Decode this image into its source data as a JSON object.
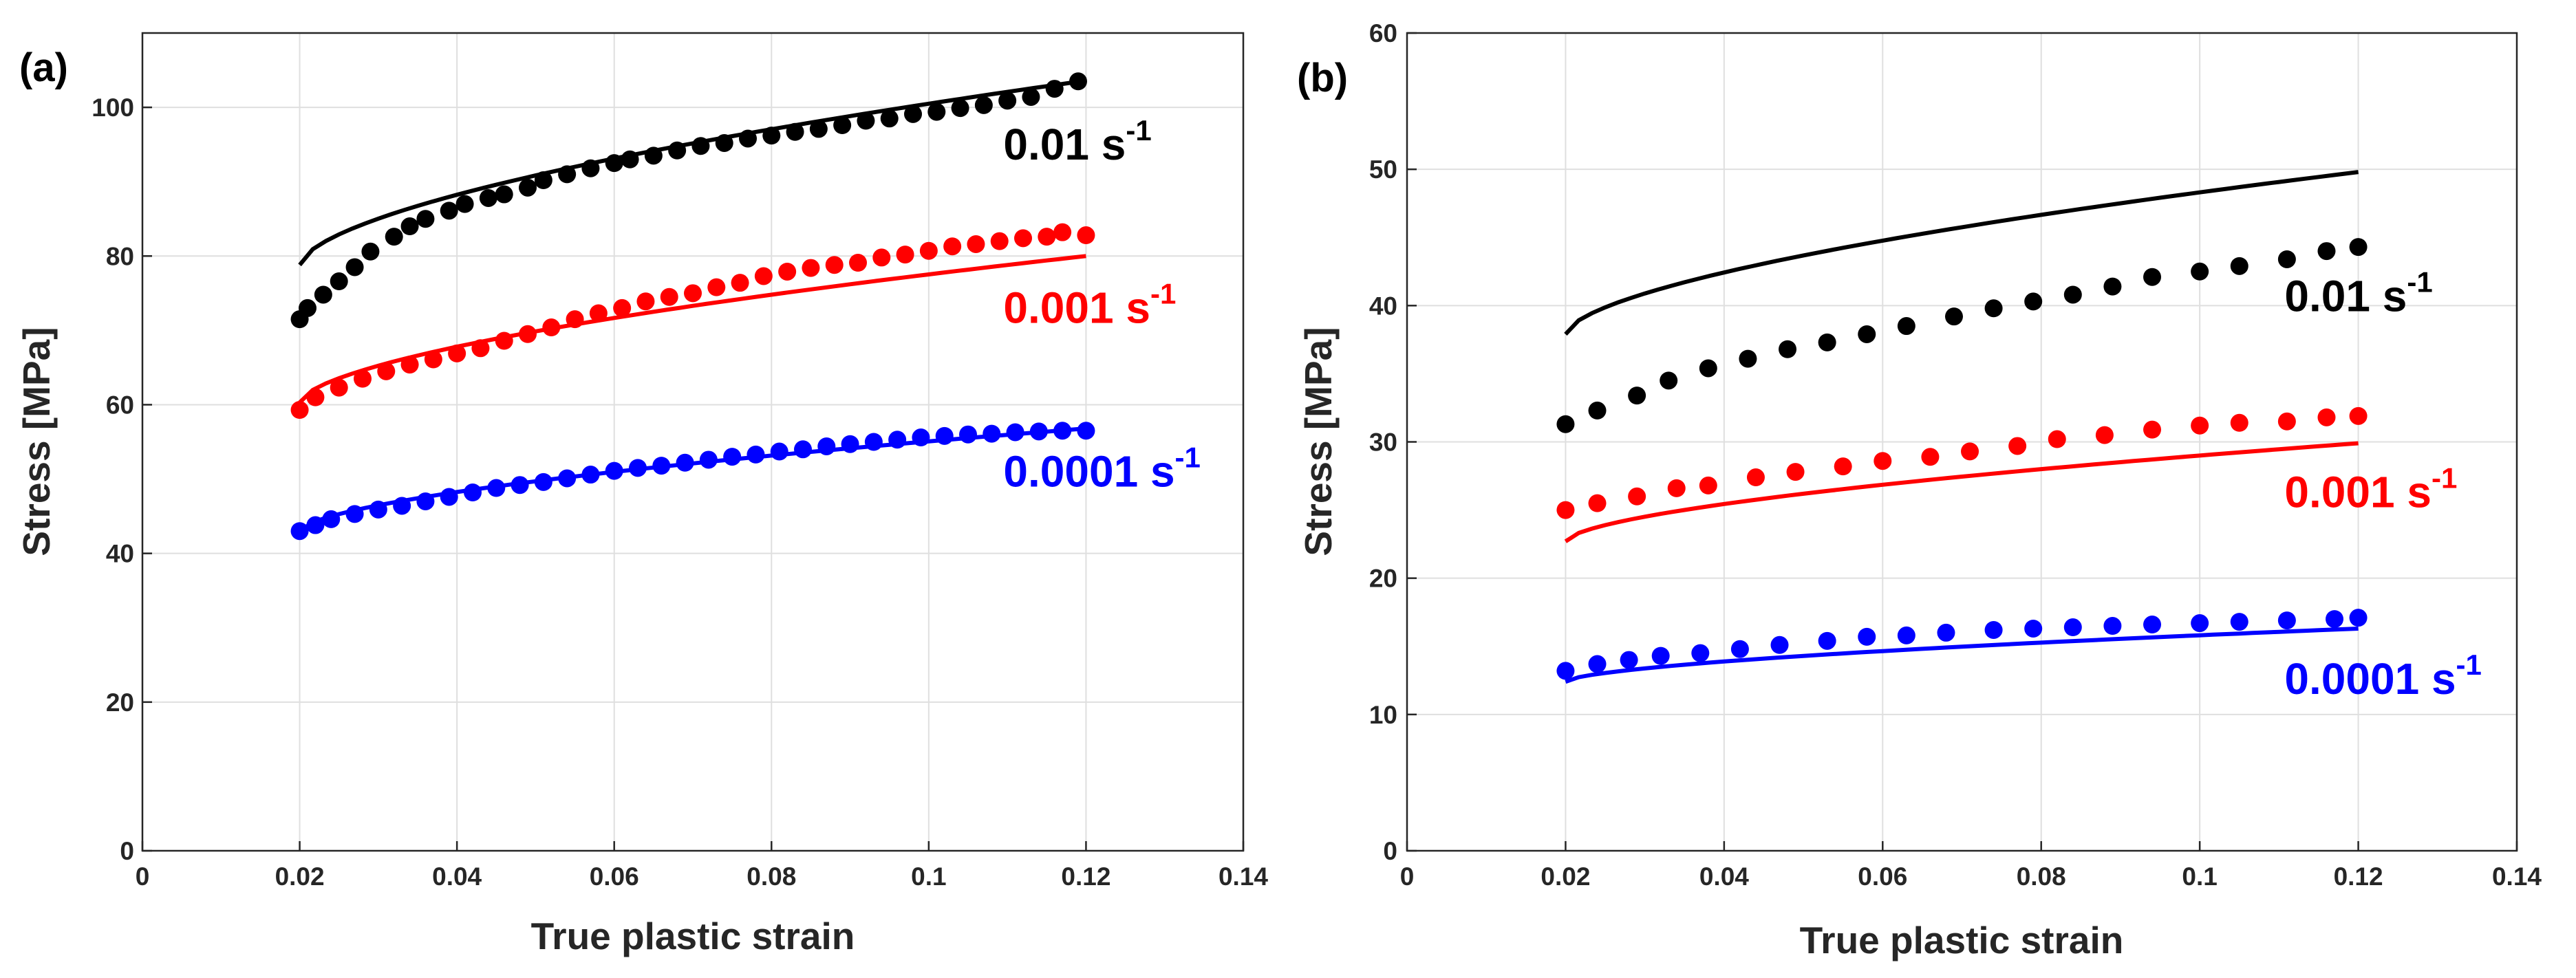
{
  "chart_data": [
    {
      "type": "scatter",
      "panel_label": "(a)",
      "xlabel": "True plastic strain",
      "ylabel": "Stress [MPa]",
      "xlim": [
        0,
        0.14
      ],
      "ylim": [
        0,
        110
      ],
      "x_ticks": [
        0,
        0.02,
        0.04,
        0.06,
        0.08,
        0.1,
        0.12,
        0.14
      ],
      "x_tick_labels": [
        "0",
        "0.02",
        "0.04",
        "0.06",
        "0.08",
        "0.1",
        "0.12",
        "0.14"
      ],
      "y_ticks": [
        0,
        20,
        40,
        60,
        80,
        100
      ],
      "y_tick_labels": [
        "0",
        "20",
        "40",
        "60",
        "80",
        "100"
      ],
      "grid": true,
      "series": [
        {
          "name": "0.01 s-1",
          "label_text": "0.01 s",
          "label_sup": "-1",
          "color": "#000000",
          "label_anchor": [
            0.1095,
            93
          ],
          "experimental": {
            "x": [
              0.02,
              0.021,
              0.023,
              0.025,
              0.027,
              0.029,
              0.032,
              0.034,
              0.036,
              0.039,
              0.041,
              0.044,
              0.046,
              0.049,
              0.051,
              0.054,
              0.057,
              0.06,
              0.062,
              0.065,
              0.068,
              0.071,
              0.074,
              0.077,
              0.08,
              0.083,
              0.086,
              0.089,
              0.092,
              0.095,
              0.098,
              0.101,
              0.104,
              0.107,
              0.11,
              0.113,
              0.116,
              0.119
            ],
            "y": [
              71.5,
              73.0,
              74.8,
              76.6,
              78.5,
              80.6,
              82.6,
              84.0,
              85.0,
              86.1,
              87.0,
              87.8,
              88.3,
              89.2,
              90.2,
              91.0,
              91.8,
              92.5,
              93.0,
              93.5,
              94.2,
              94.8,
              95.2,
              95.8,
              96.2,
              96.7,
              97.1,
              97.6,
              98.2,
              98.5,
              99.1,
              99.4,
              99.9,
              100.3,
              100.9,
              101.4,
              102.5,
              103.5
            ]
          },
          "model": {
            "x": [
              0.02,
              0.12
            ],
            "y": [
              78.8,
              103.6
            ]
          }
        },
        {
          "name": "0.001 s-1",
          "label_text": "0.001 s",
          "label_sup": "-1",
          "color": "#ff0000",
          "label_anchor": [
            0.1095,
            71
          ],
          "experimental": {
            "x": [
              0.02,
              0.022,
              0.025,
              0.028,
              0.031,
              0.034,
              0.037,
              0.04,
              0.043,
              0.046,
              0.049,
              0.052,
              0.055,
              0.058,
              0.061,
              0.064,
              0.067,
              0.07,
              0.073,
              0.076,
              0.079,
              0.082,
              0.085,
              0.088,
              0.091,
              0.094,
              0.097,
              0.1,
              0.103,
              0.106,
              0.109,
              0.112,
              0.115,
              0.117,
              0.12
            ],
            "y": [
              59.3,
              61.0,
              62.3,
              63.5,
              64.5,
              65.4,
              66.1,
              66.9,
              67.6,
              68.6,
              69.5,
              70.4,
              71.5,
              72.3,
              73.0,
              73.9,
              74.5,
              75.0,
              75.8,
              76.4,
              77.3,
              77.9,
              78.4,
              78.8,
              79.1,
              79.8,
              80.2,
              80.7,
              81.3,
              81.6,
              82.0,
              82.4,
              82.6,
              83.2,
              82.8
            ]
          },
          "model": {
            "x": [
              0.02,
              0.12
            ],
            "y": [
              60.3,
              80.0
            ]
          }
        },
        {
          "name": "0.0001 s-1",
          "label_text": "0.0001 s",
          "label_sup": "-1",
          "color": "#0000ff",
          "label_anchor": [
            0.1095,
            49
          ],
          "experimental": {
            "x": [
              0.02,
              0.022,
              0.024,
              0.027,
              0.03,
              0.033,
              0.036,
              0.039,
              0.042,
              0.045,
              0.048,
              0.051,
              0.054,
              0.057,
              0.06,
              0.063,
              0.066,
              0.069,
              0.072,
              0.075,
              0.078,
              0.081,
              0.084,
              0.087,
              0.09,
              0.093,
              0.096,
              0.099,
              0.102,
              0.105,
              0.108,
              0.111,
              0.114,
              0.117,
              0.12
            ],
            "y": [
              43.0,
              43.8,
              44.6,
              45.3,
              45.9,
              46.4,
              47.0,
              47.6,
              48.2,
              48.8,
              49.2,
              49.6,
              50.1,
              50.6,
              51.1,
              51.5,
              51.8,
              52.2,
              52.6,
              53.0,
              53.3,
              53.7,
              54.0,
              54.4,
              54.7,
              55.0,
              55.3,
              55.6,
              55.8,
              56.0,
              56.1,
              56.3,
              56.4,
              56.5,
              56.5
            ]
          },
          "model": {
            "x": [
              0.02,
              0.12
            ],
            "y": [
              43.0,
              56.8
            ]
          }
        }
      ]
    },
    {
      "type": "scatter",
      "panel_label": "(b)",
      "xlabel": "True plastic strain",
      "ylabel": "Stress [MPa]",
      "xlim": [
        0,
        0.14
      ],
      "ylim": [
        0,
        60
      ],
      "x_ticks": [
        0,
        0.02,
        0.04,
        0.06,
        0.08,
        0.1,
        0.12,
        0.14
      ],
      "x_tick_labels": [
        "0",
        "0.02",
        "0.04",
        "0.06",
        "0.08",
        "0.1",
        "0.12",
        "0.14"
      ],
      "y_ticks": [
        0,
        10,
        20,
        30,
        40,
        50,
        60
      ],
      "y_tick_labels": [
        "0",
        "10",
        "20",
        "30",
        "40",
        "50",
        "60"
      ],
      "grid": true,
      "series": [
        {
          "name": "0.01 s-1",
          "label_text": "0.01 s",
          "label_sup": "-1",
          "color": "#000000",
          "label_anchor": [
            0.1107,
            39.6
          ],
          "experimental": {
            "x": [
              0.02,
              0.024,
              0.029,
              0.033,
              0.038,
              0.043,
              0.048,
              0.053,
              0.058,
              0.063,
              0.069,
              0.074,
              0.079,
              0.084,
              0.089,
              0.094,
              0.1,
              0.105,
              0.111,
              0.116,
              0.12
            ],
            "y": [
              31.3,
              32.3,
              33.4,
              34.5,
              35.4,
              36.1,
              36.8,
              37.3,
              37.9,
              38.5,
              39.2,
              39.8,
              40.3,
              40.8,
              41.4,
              42.1,
              42.5,
              42.9,
              43.4,
              44.0,
              44.3
            ]
          },
          "model": {
            "x": [
              0.02,
              0.12
            ],
            "y": [
              37.9,
              49.8
            ]
          }
        },
        {
          "name": "0.001 s-1",
          "label_text": "0.001 s",
          "label_sup": "-1",
          "color": "#ff0000",
          "label_anchor": [
            0.1107,
            25.2
          ],
          "experimental": {
            "x": [
              0.02,
              0.024,
              0.029,
              0.034,
              0.038,
              0.044,
              0.049,
              0.055,
              0.06,
              0.066,
              0.071,
              0.077,
              0.082,
              0.088,
              0.094,
              0.1,
              0.105,
              0.111,
              0.116,
              0.12
            ],
            "y": [
              25.0,
              25.5,
              26.0,
              26.6,
              26.8,
              27.4,
              27.8,
              28.2,
              28.6,
              28.9,
              29.3,
              29.7,
              30.2,
              30.5,
              30.9,
              31.2,
              31.4,
              31.5,
              31.8,
              31.9
            ]
          },
          "model": {
            "x": [
              0.02,
              0.12
            ],
            "y": [
              22.7,
              29.9
            ]
          }
        },
        {
          "name": "0.0001 s-1",
          "label_text": "0.0001 s",
          "label_sup": "-1",
          "color": "#0000ff",
          "label_anchor": [
            0.1107,
            11.5
          ],
          "experimental": {
            "x": [
              0.02,
              0.024,
              0.028,
              0.032,
              0.037,
              0.042,
              0.047,
              0.053,
              0.058,
              0.063,
              0.068,
              0.074,
              0.079,
              0.084,
              0.089,
              0.094,
              0.1,
              0.105,
              0.111,
              0.117,
              0.12
            ],
            "y": [
              13.2,
              13.7,
              14.0,
              14.3,
              14.5,
              14.8,
              15.1,
              15.4,
              15.7,
              15.8,
              16.0,
              16.2,
              16.3,
              16.4,
              16.5,
              16.6,
              16.7,
              16.8,
              16.9,
              17.0,
              17.1
            ]
          },
          "model": {
            "x": [
              0.02,
              0.12
            ],
            "y": [
              12.4,
              16.3
            ]
          }
        }
      ]
    }
  ]
}
